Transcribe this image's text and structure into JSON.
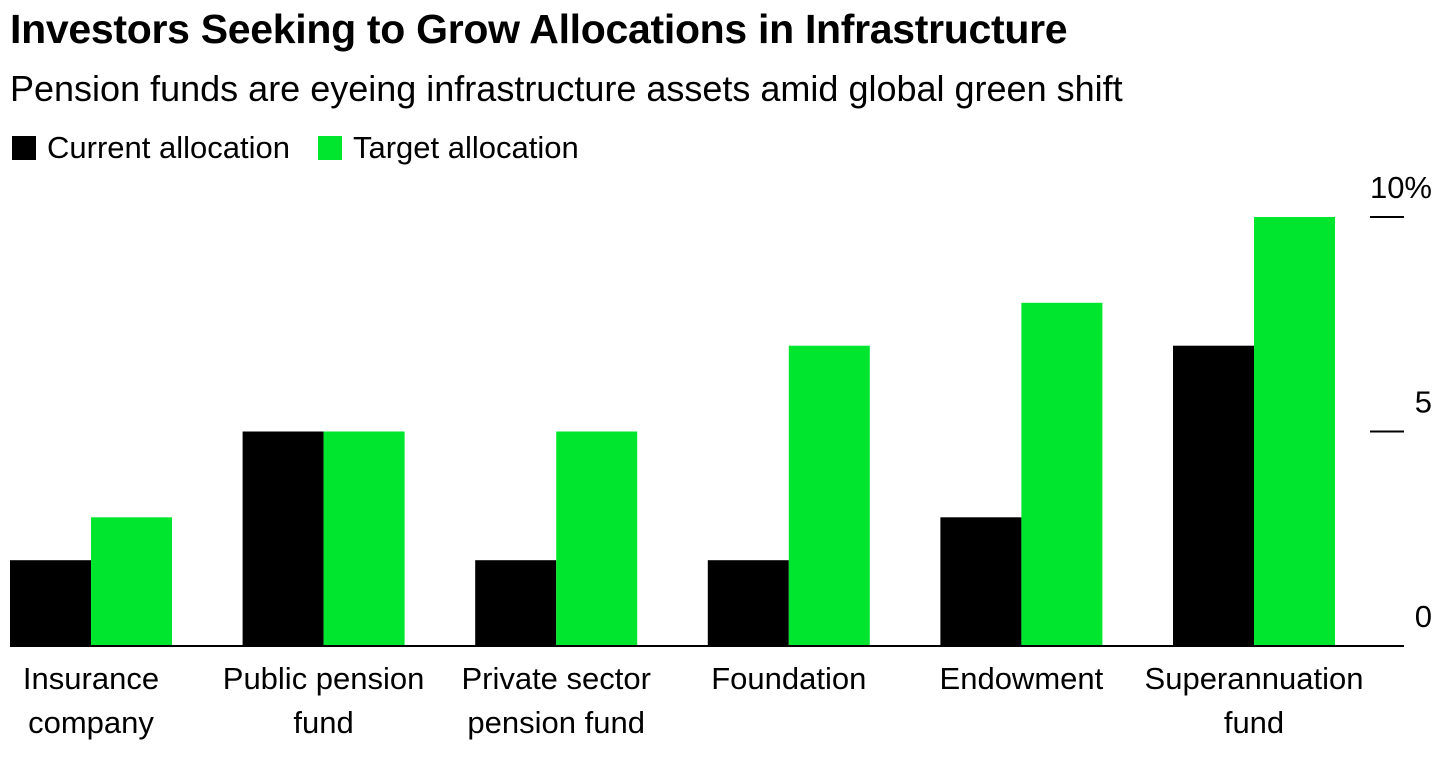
{
  "colors": {
    "current": "#000000",
    "target": "#00e62e",
    "axis": "#000000",
    "background": "#ffffff"
  },
  "chart_data": {
    "type": "bar",
    "title": "Investors Seeking to Grow Allocations in Infrastructure",
    "subtitle": "Pension funds are eyeing infrastructure assets amid global green shift",
    "categories": [
      [
        "Insurance",
        "company"
      ],
      [
        "Public pension",
        "fund"
      ],
      [
        "Private sector",
        "pension fund"
      ],
      [
        "Foundation"
      ],
      [
        "Endowment"
      ],
      [
        "Superannuation",
        "fund"
      ]
    ],
    "series": [
      {
        "name": "Current allocation",
        "color": "#000000",
        "values": [
          2,
          5,
          2,
          2,
          3,
          7
        ]
      },
      {
        "name": "Target allocation",
        "color": "#00e62e",
        "values": [
          3,
          5,
          5,
          7,
          8,
          10
        ]
      }
    ],
    "yaxis": {
      "ticks": [
        0,
        5,
        10
      ],
      "tick_labels": [
        "0",
        "5",
        "10%"
      ],
      "position": "right"
    },
    "ylim": [
      0,
      10
    ],
    "grid": false,
    "legend": "top-left"
  }
}
